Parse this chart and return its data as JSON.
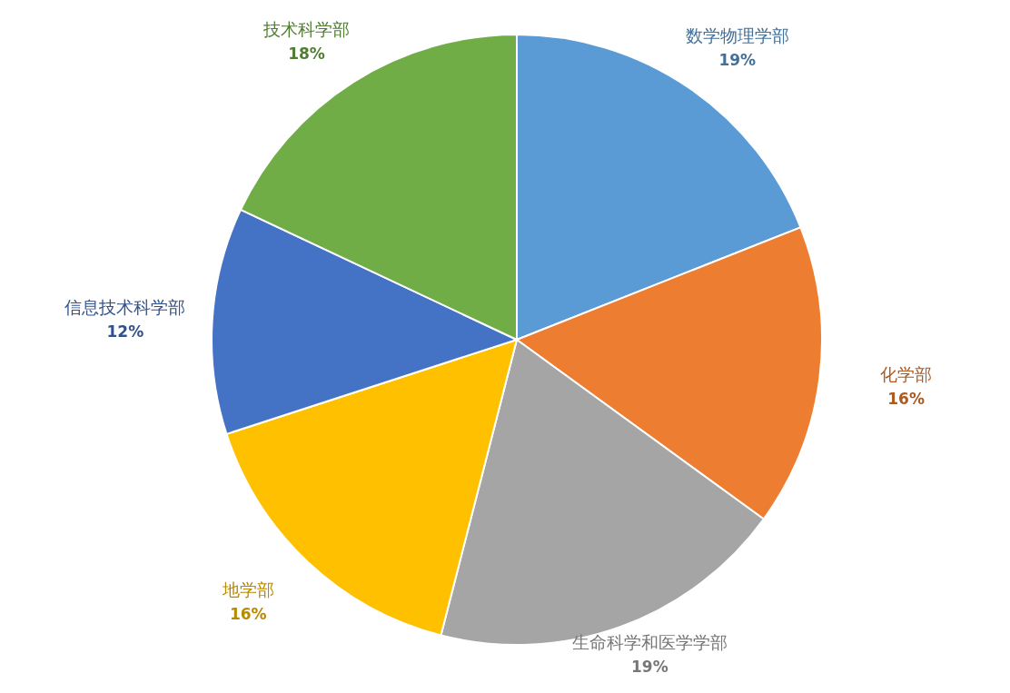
{
  "chart_data": {
    "type": "pie",
    "categories": [
      "数学物理学部",
      "化学部",
      "生命科学和医学学部",
      "地学部",
      "信息技术科学部",
      "技术科学部"
    ],
    "values": [
      19,
      16,
      19,
      16,
      12,
      18
    ],
    "value_labels": [
      "19%",
      "16%",
      "19%",
      "16%",
      "12%",
      "18%"
    ],
    "colors": [
      "#5b9bd5",
      "#ed7d31",
      "#a5a5a5",
      "#ffc000",
      "#4472c4",
      "#70ad47"
    ],
    "legend": false
  }
}
